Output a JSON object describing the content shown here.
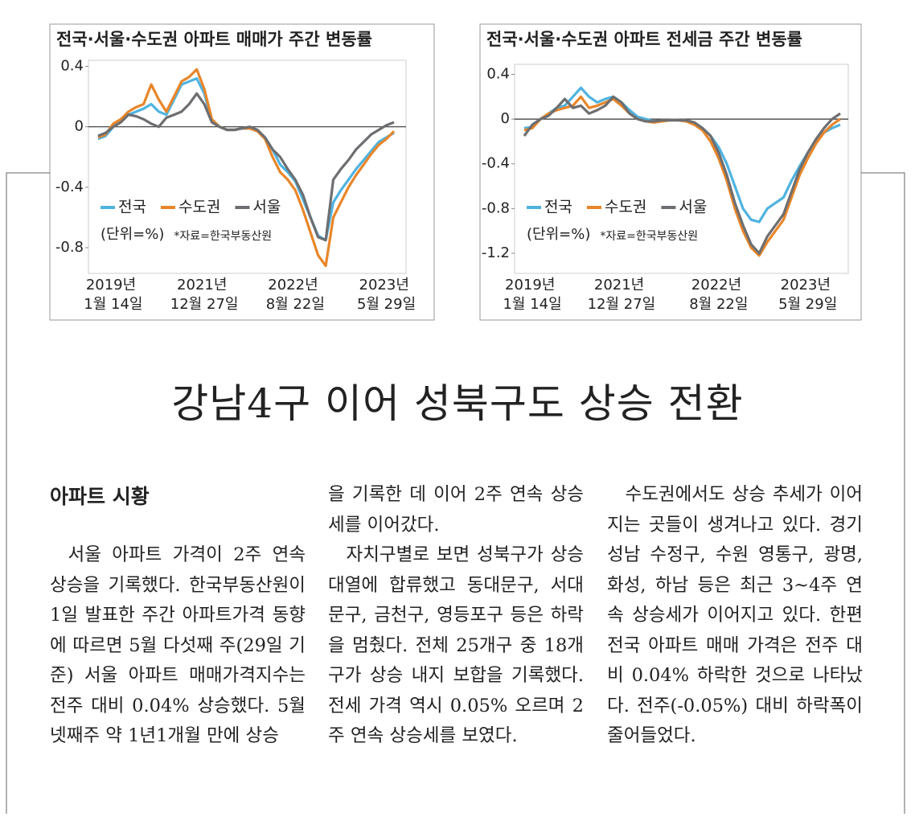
{
  "chart_data": [
    {
      "type": "line",
      "title": "전국·서울·수도권 아파트 매매가 주간 변동률",
      "categories": [
        null,
        null,
        "2019년 1월 14일",
        null,
        null,
        null,
        null,
        null,
        null,
        null,
        null,
        null,
        null,
        null,
        "2021년 12월 27일",
        null,
        null,
        null,
        null,
        null,
        null,
        null,
        null,
        null,
        null,
        null,
        "2022년 8월 22일",
        null,
        null,
        null,
        null,
        null,
        null,
        null,
        null,
        null,
        null,
        null,
        "2023년 5월 29일",
        null
      ],
      "series": [
        {
          "name": "전국",
          "color": "#4fb3e0",
          "values": [
            -0.08,
            -0.06,
            0.0,
            0.04,
            0.08,
            0.1,
            0.12,
            0.15,
            0.1,
            0.08,
            0.18,
            0.28,
            0.3,
            0.32,
            0.22,
            0.04,
            0.0,
            -0.02,
            -0.02,
            -0.01,
            -0.01,
            -0.03,
            -0.07,
            -0.15,
            -0.25,
            -0.3,
            -0.36,
            -0.48,
            -0.6,
            -0.72,
            -0.75,
            -0.5,
            -0.42,
            -0.35,
            -0.28,
            -0.22,
            -0.16,
            -0.1,
            -0.07,
            -0.04
          ]
        },
        {
          "name": "수도권",
          "color": "#e8862a",
          "values": [
            -0.07,
            -0.05,
            0.02,
            0.05,
            0.1,
            0.13,
            0.15,
            0.28,
            0.18,
            0.1,
            0.2,
            0.3,
            0.33,
            0.38,
            0.25,
            0.05,
            0.0,
            -0.02,
            -0.02,
            -0.01,
            -0.01,
            -0.03,
            -0.08,
            -0.2,
            -0.3,
            -0.35,
            -0.42,
            -0.55,
            -0.7,
            -0.85,
            -0.92,
            -0.6,
            -0.5,
            -0.4,
            -0.32,
            -0.25,
            -0.18,
            -0.12,
            -0.08,
            -0.03
          ]
        },
        {
          "name": "서울",
          "color": "#6d6e71",
          "values": [
            -0.06,
            -0.04,
            0.0,
            0.03,
            0.08,
            0.07,
            0.05,
            0.02,
            0.0,
            0.06,
            0.08,
            0.1,
            0.15,
            0.22,
            0.15,
            0.03,
            0.0,
            -0.02,
            -0.02,
            -0.01,
            0.0,
            -0.02,
            -0.07,
            -0.15,
            -0.2,
            -0.28,
            -0.35,
            -0.45,
            -0.6,
            -0.73,
            -0.75,
            -0.35,
            -0.28,
            -0.22,
            -0.15,
            -0.1,
            -0.05,
            -0.02,
            0.01,
            0.03
          ]
        }
      ],
      "ylim": [
        -0.97,
        0.44
      ],
      "yticks": [
        0.4,
        0,
        -0.4,
        -0.8
      ],
      "annotations": [
        "(단위=%)",
        "*자료=한국부동산원"
      ]
    },
    {
      "type": "line",
      "title": "전국·서울·수도권 아파트 전세금 주간 변동률",
      "categories": [
        null,
        "2019년 1월 14일",
        null,
        null,
        null,
        null,
        null,
        null,
        null,
        null,
        null,
        null,
        "2021년 12월 27일",
        null,
        null,
        null,
        null,
        null,
        null,
        null,
        null,
        null,
        null,
        null,
        "2022년 8월 22일",
        null,
        null,
        null,
        null,
        null,
        null,
        null,
        null,
        null,
        null,
        "2023년 5월 29일",
        null,
        null,
        null,
        null
      ],
      "series": [
        {
          "name": "전국",
          "color": "#4fb3e0",
          "values": [
            -0.08,
            -0.07,
            0.0,
            0.05,
            0.1,
            0.12,
            0.2,
            0.28,
            0.2,
            0.15,
            0.18,
            0.2,
            0.15,
            0.08,
            0.02,
            0.0,
            -0.02,
            -0.02,
            -0.01,
            -0.01,
            -0.02,
            -0.04,
            -0.08,
            -0.15,
            -0.25,
            -0.4,
            -0.6,
            -0.8,
            -0.9,
            -0.92,
            -0.8,
            -0.75,
            -0.7,
            -0.55,
            -0.42,
            -0.3,
            -0.2,
            -0.12,
            -0.08,
            -0.05
          ]
        },
        {
          "name": "수도권",
          "color": "#e8862a",
          "values": [
            -0.1,
            -0.08,
            0.0,
            0.05,
            0.08,
            0.1,
            0.12,
            0.2,
            0.1,
            0.12,
            0.15,
            0.18,
            0.12,
            0.05,
            0.0,
            -0.02,
            -0.03,
            -0.02,
            -0.01,
            -0.01,
            -0.02,
            -0.05,
            -0.1,
            -0.2,
            -0.35,
            -0.55,
            -0.8,
            -1.0,
            -1.15,
            -1.22,
            -1.1,
            -1.0,
            -0.9,
            -0.7,
            -0.5,
            -0.35,
            -0.22,
            -0.12,
            -0.05,
            0.0
          ]
        },
        {
          "name": "서울",
          "color": "#6d6e71",
          "values": [
            -0.15,
            -0.05,
            0.0,
            0.03,
            0.1,
            0.18,
            0.1,
            0.12,
            0.05,
            0.08,
            0.12,
            0.2,
            0.15,
            0.05,
            0.0,
            -0.02,
            -0.02,
            -0.01,
            -0.01,
            -0.01,
            -0.01,
            -0.03,
            -0.08,
            -0.15,
            -0.3,
            -0.5,
            -0.75,
            -0.95,
            -1.12,
            -1.2,
            -1.05,
            -0.95,
            -0.85,
            -0.65,
            -0.45,
            -0.3,
            -0.18,
            -0.08,
            0.0,
            0.05
          ]
        }
      ],
      "ylim": [
        -1.38,
        0.49
      ],
      "yticks": [
        0.4,
        0,
        -0.4,
        -0.8,
        -1.2
      ],
      "annotations": [
        "(단위=%)",
        "*자료=한국부동산원"
      ]
    }
  ],
  "article": {
    "headline": "강남4구 이어 성북구도 상승 전환",
    "section": "아파트 시황",
    "columns": [
      [
        "서울 아파트 가격이 2주 연속 상승을 기록했다. 한국부동산원이 1일 발표한 주간 아파트가격 동향에 따르면 5월 다섯째 주(29일 기준) 서울 아파트 매매가격지수는 전주 대비 0.04% 상승했다. 5월 넷째주 약 1년1개월 만에 상승"
      ],
      [
        "을 기록한 데 이어 2주 연속 상승세를 이어갔다.",
        "자치구별로 보면 성북구가 상승 대열에 합류했고 동대문구, 서대문구, 금천구, 영등포구 등은 하락을 멈췄다. 전체 25개구 중 18개구가 상승 내지 보합을 기록했다. 전세 가격 역시 0.05% 오르며 2주 연속 상승세를 보였다."
      ],
      [
        "수도권에서도 상승 추세가 이어지는 곳들이 생겨나고 있다. 경기 성남 수정구, 수원 영통구, 광명, 화성, 하남 등은 최근 3~4주 연속 상승세가 이어지고 있다. 한편 전국 아파트 매매 가격은 전주 대비 0.04% 하락한 것으로 나타났다. 전주(-0.05%) 대비 하락폭이 줄어들었다."
      ]
    ]
  }
}
